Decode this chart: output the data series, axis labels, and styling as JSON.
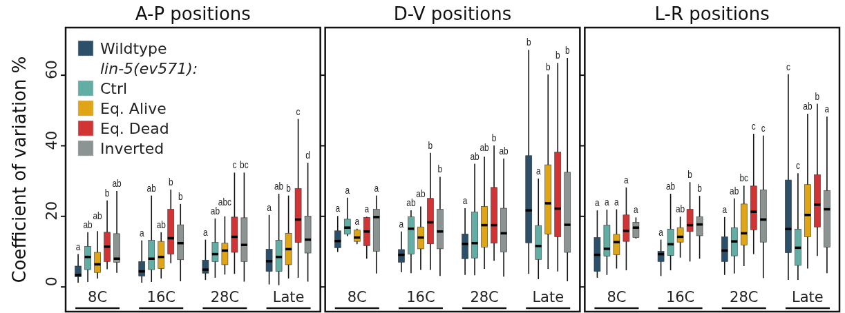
{
  "chart_data": [
    {
      "type": "box",
      "title": "A-P positions",
      "ylabel": "Coefficient of variation %",
      "categories": [
        "8C",
        "16C",
        "28C",
        "Late"
      ],
      "ylim": [
        -7,
        73.5
      ],
      "yticks": [
        0,
        20,
        40,
        60
      ],
      "legend": "top left",
      "legend_title": "lin-5(ev571):",
      "series": [
        {
          "name": "Wildtype",
          "color": "#2c5069",
          "value_labels": [
            "a",
            "a",
            "a",
            "a"
          ],
          "boxes": [
            {
              "low": 1.2,
              "q1": 2.9,
              "median": 3.4,
              "q3": 5.9,
              "high": 9.3
            },
            {
              "low": 1.2,
              "q1": 3.1,
              "median": 4.4,
              "q3": 7.2,
              "high": 13.2
            },
            {
              "low": 2.0,
              "q1": 3.9,
              "median": 4.9,
              "q3": 7.6,
              "high": 13.4
            },
            {
              "low": 0.7,
              "q1": 4.4,
              "median": 7.3,
              "q3": 10.7,
              "high": 20.4
            }
          ]
        },
        {
          "name": "Ctrl",
          "color": "#62aea4",
          "value_labels": [
            "ab",
            "ab",
            "ab",
            "ab"
          ],
          "boxes": [
            {
              "low": 1.4,
              "q1": 4.9,
              "median": 8.5,
              "q3": 11.5,
              "high": 15.5
            },
            {
              "low": 1.4,
              "q1": 4.9,
              "median": 8.0,
              "q3": 13.2,
              "high": 25.9
            },
            {
              "low": 2.6,
              "q1": 7.2,
              "median": 9.3,
              "q3": 12.6,
              "high": 19.4
            },
            {
              "low": 0.5,
              "q1": 4.4,
              "median": 8.5,
              "q3": 13.2,
              "high": 26.4
            }
          ]
        },
        {
          "name": "Eq. Alive",
          "color": "#e0a516",
          "value_labels": [
            "ab",
            "ab",
            "abc",
            "b"
          ],
          "boxes": [
            {
              "low": 2.4,
              "q1": 4.1,
              "median": 6.4,
              "q3": 9.8,
              "high": 15.8
            },
            {
              "low": 2.4,
              "q1": 5.2,
              "median": 8.5,
              "q3": 12.9,
              "high": 15.5
            },
            {
              "low": 3.5,
              "q1": 6.3,
              "median": 10.3,
              "q3": 12.4,
              "high": 20.0
            },
            {
              "low": 2.4,
              "q1": 6.3,
              "median": 10.7,
              "q3": 15.2,
              "high": 25.9
            }
          ]
        },
        {
          "name": "Eq. Dead",
          "color": "#d03434",
          "value_labels": [
            "b",
            "b",
            "c",
            "c"
          ],
          "boxes": [
            {
              "low": 5.0,
              "q1": 7.2,
              "median": 11.4,
              "q3": 15.5,
              "high": 24.5
            },
            {
              "low": 6.7,
              "q1": 9.3,
              "median": 13.8,
              "q3": 22.0,
              "high": 27.6
            },
            {
              "low": 3.7,
              "q1": 9.8,
              "median": 14.2,
              "q3": 19.8,
              "high": 32.4
            },
            {
              "low": 2.6,
              "q1": 12.6,
              "median": 19.1,
              "q3": 27.9,
              "high": 47.6
            }
          ]
        },
        {
          "name": "Inverted",
          "color": "#8b9492",
          "value_labels": [
            "ab",
            "b",
            "bc",
            "d"
          ],
          "boxes": [
            {
              "low": 4.0,
              "q1": 7.0,
              "median": 8.0,
              "q3": 15.1,
              "high": 27.2
            },
            {
              "low": 1.6,
              "q1": 7.7,
              "median": 12.4,
              "q3": 17.6,
              "high": 23.5
            },
            {
              "low": 1.5,
              "q1": 7.2,
              "median": 11.9,
              "q3": 19.6,
              "high": 32.4
            },
            {
              "low": 1.5,
              "q1": 9.6,
              "median": 13.4,
              "q3": 20.1,
              "high": 35.2
            }
          ]
        }
      ]
    },
    {
      "type": "box",
      "title": "D-V positions",
      "categories": [
        "8C",
        "16C",
        "28C",
        "Late"
      ],
      "ylim": [
        -7,
        73.5
      ],
      "yticks": [
        0,
        20,
        40,
        60
      ],
      "tick_labels": "x",
      "series": [
        {
          "color": "#2c5069",
          "value_labels": [
            "a",
            "a",
            "a",
            "b"
          ],
          "boxes": [
            {
              "low": 9.9,
              "q1": 11.1,
              "median": 13.0,
              "q3": 15.9,
              "high": 20.1
            },
            {
              "low": 4.2,
              "q1": 7.0,
              "median": 9.1,
              "q3": 10.6,
              "high": 15.7
            },
            {
              "low": 3.4,
              "q1": 8.0,
              "median": 12.2,
              "q3": 15.0,
              "high": 22.3
            },
            {
              "low": 3.7,
              "q1": 12.5,
              "median": 21.7,
              "q3": 37.2,
              "high": 67.2
            }
          ]
        },
        {
          "color": "#62aea4",
          "value_labels": [
            "a",
            "ab",
            "ab",
            "a"
          ],
          "boxes": [
            {
              "low": 14.4,
              "q1": 15.0,
              "median": 16.8,
              "q3": 19.2,
              "high": 25.3
            },
            {
              "low": 3.9,
              "q1": 9.3,
              "median": 16.5,
              "q3": 19.9,
              "high": 21.7
            },
            {
              "low": 3.3,
              "q1": 8.2,
              "median": 12.4,
              "q3": 21.2,
              "high": 34.9
            },
            {
              "low": 2.2,
              "q1": 7.8,
              "median": 11.6,
              "q3": 17.4,
              "high": 30.7
            }
          ]
        },
        {
          "color": "#e0a516",
          "value_labels": [
            "a",
            "ab",
            "ab",
            "b"
          ],
          "boxes": [
            {
              "low": 12.1,
              "q1": 12.9,
              "median": 14.0,
              "q3": 16.1,
              "high": 16.5
            },
            {
              "low": 4.8,
              "q1": 10.8,
              "median": 14.0,
              "q3": 17.0,
              "high": 22.8
            },
            {
              "low": 5.1,
              "q1": 11.3,
              "median": 17.5,
              "q3": 22.8,
              "high": 36.9
            },
            {
              "low": 5.1,
              "q1": 15.0,
              "median": 23.7,
              "q3": 34.6,
              "high": 60.2
            }
          ]
        },
        {
          "color": "#d03434",
          "value_labels": [
            "a",
            "b",
            "b",
            "b"
          ],
          "boxes": [
            {
              "low": 8.0,
              "q1": 11.7,
              "median": 15.7,
              "q3": 19.7,
              "high": 19.9
            },
            {
              "low": 4.8,
              "q1": 12.2,
              "median": 18.3,
              "q3": 25.1,
              "high": 38.0
            },
            {
              "low": 7.4,
              "q1": 12.4,
              "median": 17.5,
              "q3": 28.2,
              "high": 40.1
            },
            {
              "low": 4.4,
              "q1": 14.2,
              "median": 22.2,
              "q3": 38.2,
              "high": 63.5
            }
          ]
        },
        {
          "color": "#8b9492",
          "value_labels": [
            "a",
            "b",
            "ab",
            "b"
          ],
          "boxes": [
            {
              "low": 3.8,
              "q1": 10.1,
              "median": 19.8,
              "q3": 22.0,
              "high": 25.9
            },
            {
              "low": 3.1,
              "q1": 10.8,
              "median": 15.7,
              "q3": 22.0,
              "high": 31.2
            },
            {
              "low": 2.9,
              "q1": 9.9,
              "median": 15.2,
              "q3": 22.3,
              "high": 36.4
            },
            {
              "low": 1.6,
              "q1": 9.8,
              "median": 17.6,
              "q3": 32.5,
              "high": 64.9
            }
          ]
        }
      ]
    },
    {
      "type": "box",
      "title": "L-R positions",
      "categories": [
        "8C",
        "16C",
        "28C",
        "Late"
      ],
      "ylim": [
        -7,
        73.5
      ],
      "yticks": [
        0,
        20,
        40,
        60
      ],
      "tick_labels": "x",
      "series": [
        {
          "color": "#2c5069",
          "value_labels": [
            "a",
            "a",
            "a",
            "c"
          ],
          "boxes": [
            {
              "low": 2.6,
              "q1": 4.4,
              "median": 9.1,
              "q3": 14.0,
              "high": 21.7
            },
            {
              "low": 3.1,
              "q1": 7.2,
              "median": 9.3,
              "q3": 10.1,
              "high": 13.4
            },
            {
              "low": 3.4,
              "q1": 7.2,
              "median": 10.3,
              "q3": 14.2,
              "high": 19.8
            },
            {
              "low": 2.0,
              "q1": 9.7,
              "median": 16.4,
              "q3": 30.3,
              "high": 60.3
            }
          ]
        },
        {
          "color": "#62aea4",
          "value_labels": [
            "a",
            "ab",
            "ab",
            "c"
          ],
          "boxes": [
            {
              "low": 3.4,
              "q1": 8.7,
              "median": 10.8,
              "q3": 17.5,
              "high": 21.9
            },
            {
              "low": 4.7,
              "q1": 8.9,
              "median": 12.1,
              "q3": 16.4,
              "high": 26.4
            },
            {
              "low": 3.8,
              "q1": 8.8,
              "median": 12.9,
              "q3": 16.8,
              "high": 25.1
            },
            {
              "low": 2.0,
              "q1": 6.1,
              "median": 11.1,
              "q3": 16.4,
              "high": 32.2
            }
          ]
        },
        {
          "color": "#e0a516",
          "value_labels": [
            "a",
            "ab",
            "bc",
            "ab"
          ],
          "boxes": [
            {
              "low": 5.2,
              "q1": 9.1,
              "median": 12.7,
              "q3": 14.9,
              "high": 22.0
            },
            {
              "low": 8.3,
              "q1": 12.7,
              "median": 14.2,
              "q3": 16.8,
              "high": 19.9
            },
            {
              "low": 5.9,
              "q1": 11.9,
              "median": 15.2,
              "q3": 23.5,
              "high": 28.7
            },
            {
              "low": 5.2,
              "q1": 14.2,
              "median": 20.4,
              "q3": 29.0,
              "high": 49.1
            }
          ]
        },
        {
          "color": "#d03434",
          "value_labels": [
            "a",
            "b",
            "c",
            "b"
          ],
          "boxes": [
            {
              "low": 4.7,
              "q1": 12.9,
              "median": 15.9,
              "q3": 20.4,
              "high": 28.2
            },
            {
              "low": 7.2,
              "q1": 15.7,
              "median": 17.5,
              "q3": 22.0,
              "high": 29.7
            },
            {
              "low": 9.3,
              "q1": 16.2,
              "median": 21.3,
              "q3": 28.6,
              "high": 43.4
            },
            {
              "low": 8.8,
              "q1": 17.0,
              "median": 23.3,
              "q3": 31.8,
              "high": 51.9
            }
          ]
        },
        {
          "color": "#8b9492",
          "value_labels": [
            "a",
            "b",
            "c",
            "a"
          ],
          "boxes": [
            {
              "low": 13.7,
              "q1": 14.0,
              "median": 16.8,
              "q3": 18.3,
              "high": 19.7
            },
            {
              "low": 8.0,
              "q1": 14.5,
              "median": 17.7,
              "q3": 19.9,
              "high": 25.8
            },
            {
              "low": 2.5,
              "q1": 12.7,
              "median": 19.1,
              "q3": 27.5,
              "high": 42.9
            },
            {
              "low": 3.9,
              "q1": 11.3,
              "median": 22.0,
              "q3": 27.3,
              "high": 48.3
            }
          ]
        }
      ]
    }
  ]
}
